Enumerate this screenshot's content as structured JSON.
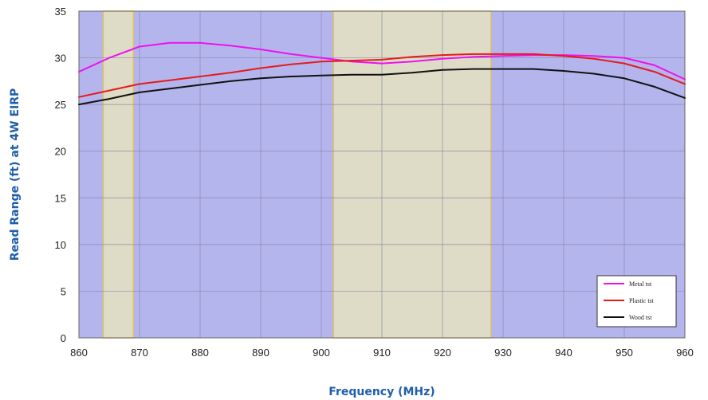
{
  "chart_data": {
    "type": "line",
    "title": "",
    "xlabel": "Frequency (MHz)",
    "ylabel": "Read Range (ft) at 4W EIRP",
    "xlim": [
      860,
      960
    ],
    "ylim": [
      0,
      35
    ],
    "x_ticks": [
      "860",
      "870",
      "880",
      "890",
      "900",
      "910",
      "920",
      "930",
      "940",
      "950",
      "960"
    ],
    "y_ticks": [
      "0",
      "5",
      "10",
      "15",
      "20",
      "25",
      "30",
      "35"
    ],
    "grid": true,
    "legend_position": "bottom-right",
    "background_color": "#b5b5ee",
    "highlight_color": "#dedcc6",
    "highlight_bands": [
      {
        "from": 864,
        "to": 869
      },
      {
        "from": 902,
        "to": 928
      }
    ],
    "series": [
      {
        "name": "Metal tst",
        "color": "#ee11ee",
        "x": [
          860,
          865,
          870,
          875,
          880,
          885,
          890,
          895,
          900,
          905,
          910,
          915,
          920,
          925,
          930,
          935,
          940,
          945,
          950,
          955,
          960
        ],
        "y": [
          28.5,
          30.0,
          31.2,
          31.6,
          31.6,
          31.3,
          30.9,
          30.4,
          30.0,
          29.6,
          29.4,
          29.6,
          29.9,
          30.1,
          30.2,
          30.3,
          30.3,
          30.2,
          30.0,
          29.2,
          27.7
        ]
      },
      {
        "name": "Plastic tst",
        "color": "#e41b1b",
        "x": [
          860,
          865,
          870,
          875,
          880,
          885,
          890,
          895,
          900,
          905,
          910,
          915,
          920,
          925,
          930,
          935,
          940,
          945,
          950,
          955,
          960
        ],
        "y": [
          25.8,
          26.5,
          27.2,
          27.6,
          28.0,
          28.4,
          28.9,
          29.3,
          29.6,
          29.7,
          29.8,
          30.1,
          30.3,
          30.4,
          30.4,
          30.4,
          30.2,
          29.9,
          29.4,
          28.5,
          27.2
        ]
      },
      {
        "name": "Wood tst",
        "color": "#111111",
        "x": [
          860,
          865,
          870,
          875,
          880,
          885,
          890,
          895,
          900,
          905,
          910,
          915,
          920,
          925,
          930,
          935,
          940,
          945,
          950,
          955,
          960
        ],
        "y": [
          25.0,
          25.6,
          26.3,
          26.7,
          27.1,
          27.5,
          27.8,
          28.0,
          28.1,
          28.2,
          28.2,
          28.4,
          28.7,
          28.8,
          28.8,
          28.8,
          28.6,
          28.3,
          27.8,
          26.9,
          25.7
        ]
      }
    ]
  }
}
